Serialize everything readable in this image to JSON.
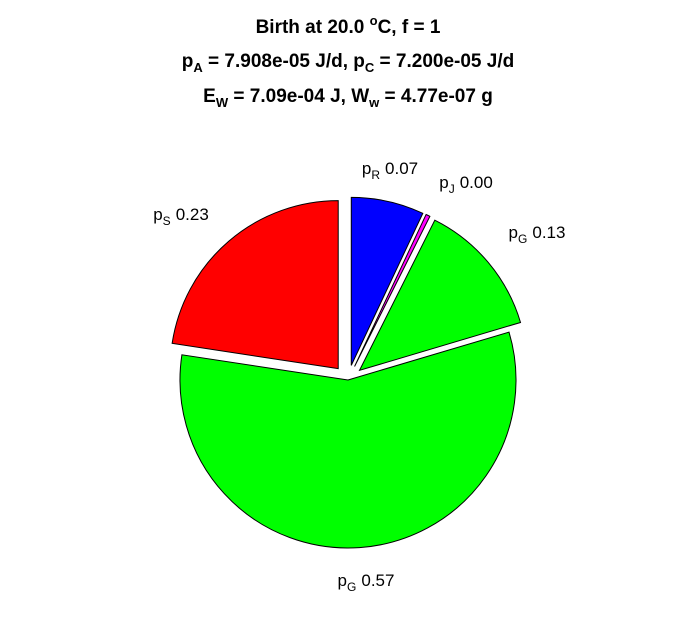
{
  "chart_data": {
    "type": "pie",
    "title_lines": [
      [
        {
          "t": "Birth at 20.0 "
        },
        {
          "t": "o",
          "sup": true
        },
        {
          "t": "C, f = 1"
        }
      ],
      [
        {
          "t": "p"
        },
        {
          "t": "A",
          "sub": true
        },
        {
          "t": " = 7.908e-05 J/d, p"
        },
        {
          "t": "C",
          "sub": true
        },
        {
          "t": " = 7.200e-05 J/d"
        }
      ],
      [
        {
          "t": "E"
        },
        {
          "t": "W",
          "sub": true
        },
        {
          "t": " = 7.09e-04 J, W"
        },
        {
          "t": "w",
          "sub": true
        },
        {
          "t": " = 4.77e-07 g"
        }
      ]
    ],
    "slices": [
      {
        "symbol": "p",
        "sub": "R",
        "value_label": "0.07",
        "value": 0.07,
        "color": "#0000ff",
        "exploded": true
      },
      {
        "symbol": "p",
        "sub": "J",
        "value_label": "0.00",
        "value": 0.004,
        "color": "#ff00ff",
        "exploded": true
      },
      {
        "symbol": "p",
        "sub": "G",
        "value_label": "0.13",
        "value": 0.13,
        "color": "#00ff00",
        "exploded": true
      },
      {
        "symbol": "p",
        "sub": "G",
        "value_label": "0.57",
        "value": 0.57,
        "color": "#00ff00",
        "exploded": false
      },
      {
        "symbol": "p",
        "sub": "S",
        "value_label": "0.23",
        "value": 0.226,
        "color": "#ff0000",
        "exploded": true
      }
    ],
    "start_angle_deg": 90,
    "direction": "clockwise"
  }
}
